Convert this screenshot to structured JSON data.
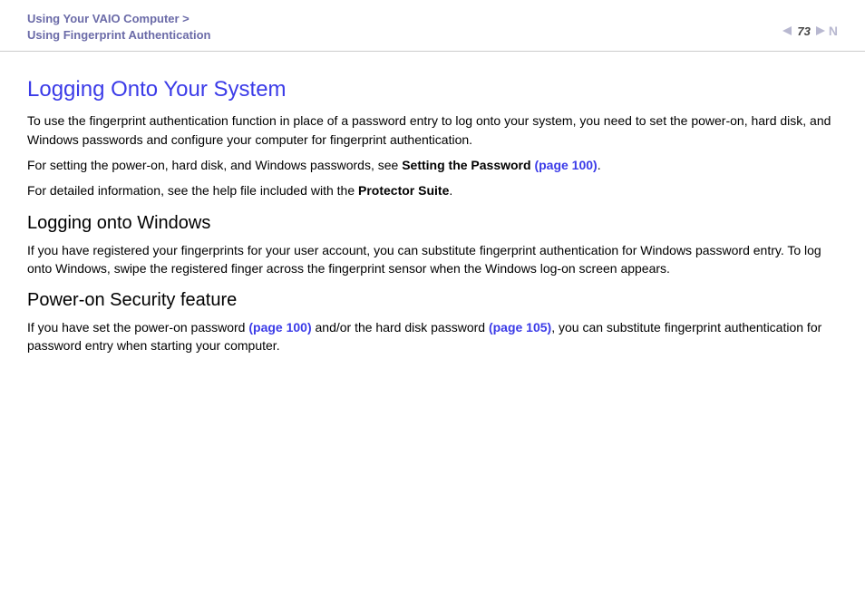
{
  "colors": {
    "heading_blue": "#3b3be8",
    "breadcrumb_color": "#6b6ba8",
    "link_blue": "#3b3be8",
    "text_black": "#000000",
    "arrow_color": "#b8b8d0",
    "divider": "#cccccc"
  },
  "header": {
    "breadcrumb_line1": "Using Your VAIO Computer >",
    "breadcrumb_line2": "Using Fingerprint Authentication",
    "page_number": "73",
    "nav_letter": "N"
  },
  "main": {
    "title": "Logging Onto Your System",
    "intro_p1": "To use the fingerprint authentication function in place of a password entry to log onto your system, you need to set the power-on, hard disk, and Windows passwords and configure your computer for fingerprint authentication.",
    "intro_p2_pre": "For setting the power-on, hard disk, and Windows passwords, see ",
    "intro_p2_bold": "Setting the Password ",
    "intro_p2_link": "(page 100)",
    "intro_p2_post": ".",
    "intro_p3_pre": "For detailed information, see the help file included with the ",
    "intro_p3_bold": "Protector Suite",
    "intro_p3_post": ".",
    "section1_title": "Logging onto Windows",
    "section1_body": "If you have registered your fingerprints for your user account, you can substitute fingerprint authentication for Windows password entry. To log onto Windows, swipe the registered finger across the fingerprint sensor when the Windows log-on screen appears.",
    "section2_title": "Power-on Security feature",
    "section2_body_pre": "If you have set the power-on password ",
    "section2_link1": "(page 100)",
    "section2_body_mid": " and/or the hard disk password ",
    "section2_link2": "(page 105)",
    "section2_body_post": ", you can substitute fingerprint authentication for password entry when starting your computer."
  }
}
